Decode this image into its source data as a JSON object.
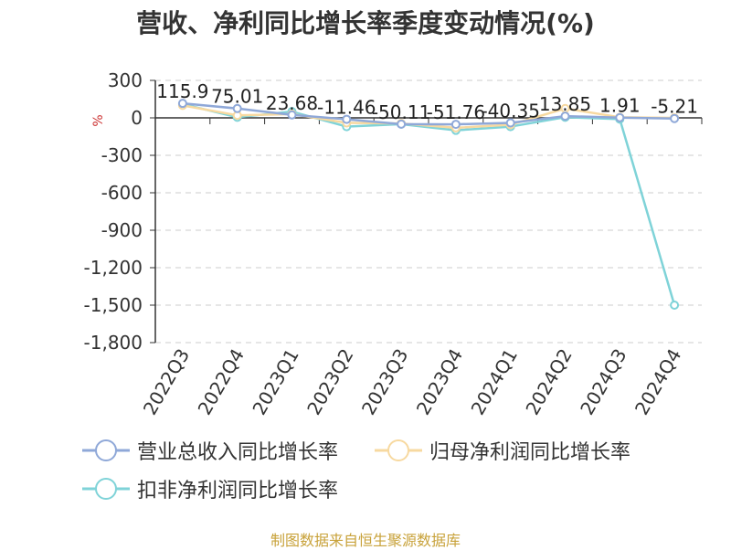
{
  "chart_data": {
    "type": "line",
    "title": "营收、净利同比增长率季度变动情况(%)",
    "ylabel": "%",
    "categories": [
      "2022Q3",
      "2022Q4",
      "2023Q1",
      "2023Q2",
      "2023Q3",
      "2023Q4",
      "2024Q1",
      "2024Q2",
      "2024Q3",
      "2024Q4"
    ],
    "ylim": [
      -1800,
      300
    ],
    "yticks": [
      300,
      0,
      -300,
      -600,
      -900,
      -1200,
      -1500,
      -1800
    ],
    "ytick_labels": [
      "300",
      "0",
      "-300",
      "-600",
      "-900",
      "-1,200",
      "-1,500",
      "-1,800"
    ],
    "grid": true,
    "legend_position": "bottom",
    "series": [
      {
        "name": "营业总收入同比增长率",
        "color": "#8fa8d8",
        "values": [
          115.9,
          75.01,
          23.68,
          -11.46,
          -50.11,
          -51.76,
          -40.35,
          13.85,
          1.91,
          -5.21
        ],
        "labels": [
          "115.9",
          "75.01",
          "23.68",
          "-11.46",
          "-50.11",
          "-51.76",
          "-40.35",
          "13.85",
          "1.91",
          "-5.21"
        ]
      },
      {
        "name": "归母净利润同比增长率",
        "color": "#f7d9a0",
        "values": [
          100,
          20,
          30,
          -40,
          -45,
          -80,
          -55,
          75,
          5,
          0
        ]
      },
      {
        "name": "扣非净利润同比增长率",
        "color": "#7fd3d8",
        "values": [
          110,
          5,
          50,
          -70,
          -50,
          -100,
          -70,
          5,
          -10,
          -1500
        ]
      }
    ]
  },
  "source": "制图数据来自恒生聚源数据库"
}
